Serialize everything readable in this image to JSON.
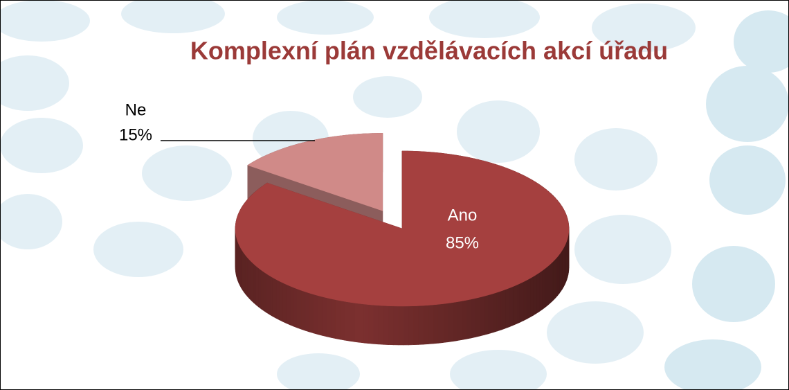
{
  "chart_data": {
    "type": "pie",
    "title": "Komplexní plán vzdělávacích akcí úřadu",
    "categories": [
      "Ano",
      "Ne"
    ],
    "values": [
      85,
      15
    ],
    "value_labels": [
      "85%",
      "15%"
    ],
    "colors": [
      "#a5403f",
      "#d08a88"
    ]
  }
}
